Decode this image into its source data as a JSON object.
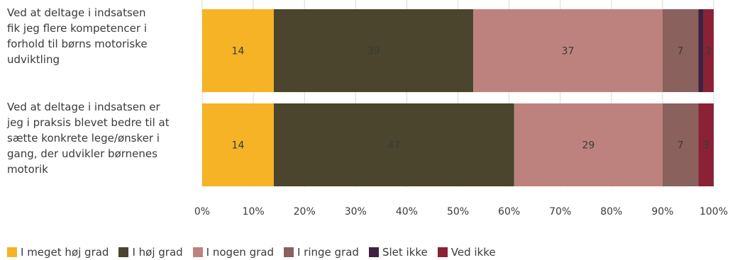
{
  "chart_data": {
    "type": "bar",
    "orientation": "horizontal",
    "stacked": true,
    "categories": [
      "Ved at deltage i indsatsen fik jeg flere kompetencer i forhold til børns motoriske udviktling",
      "Ved at deltage i indsatsen er jeg i praksis blevet bedre til at sætte konkrete lege/ønsker i gang, der udvikler børnenes motorik"
    ],
    "category_lines": [
      [
        "Ved at deltage i indsatsen",
        "fik jeg flere kompetencer i",
        "forhold til børns motoriske",
        "udviktling"
      ],
      [
        "Ved at deltage i indsatsen er",
        "jeg i praksis blevet bedre til at",
        "sætte konkrete lege/ønsker i",
        "gang, der udvikler børnenes",
        "motorik"
      ]
    ],
    "series": [
      {
        "name": "I meget høj grad",
        "values": [
          14,
          14
        ],
        "color": "#F5B325"
      },
      {
        "name": "I høj grad",
        "values": [
          39,
          47
        ],
        "color": "#4A452C"
      },
      {
        "name": "I nogen grad",
        "values": [
          37,
          29
        ],
        "color": "#BE827E"
      },
      {
        "name": "I ringe grad",
        "values": [
          7,
          7
        ],
        "color": "#8B615D"
      },
      {
        "name": "Slet ikke",
        "values": [
          1,
          0
        ],
        "color": "#40203F"
      },
      {
        "name": "Ved ikke",
        "values": [
          2,
          3
        ],
        "color": "#8A2135"
      }
    ],
    "data_labels": [
      [
        "14",
        "39",
        "37",
        "7",
        "",
        "2"
      ],
      [
        "14",
        "47",
        "29",
        "7",
        "",
        "3"
      ]
    ],
    "xlim": [
      0,
      100
    ],
    "xticks": [
      "0%",
      "10%",
      "20%",
      "30%",
      "40%",
      "50%",
      "60%",
      "70%",
      "80%",
      "90%",
      "100%"
    ],
    "grid": true,
    "legend_position": "bottom"
  }
}
